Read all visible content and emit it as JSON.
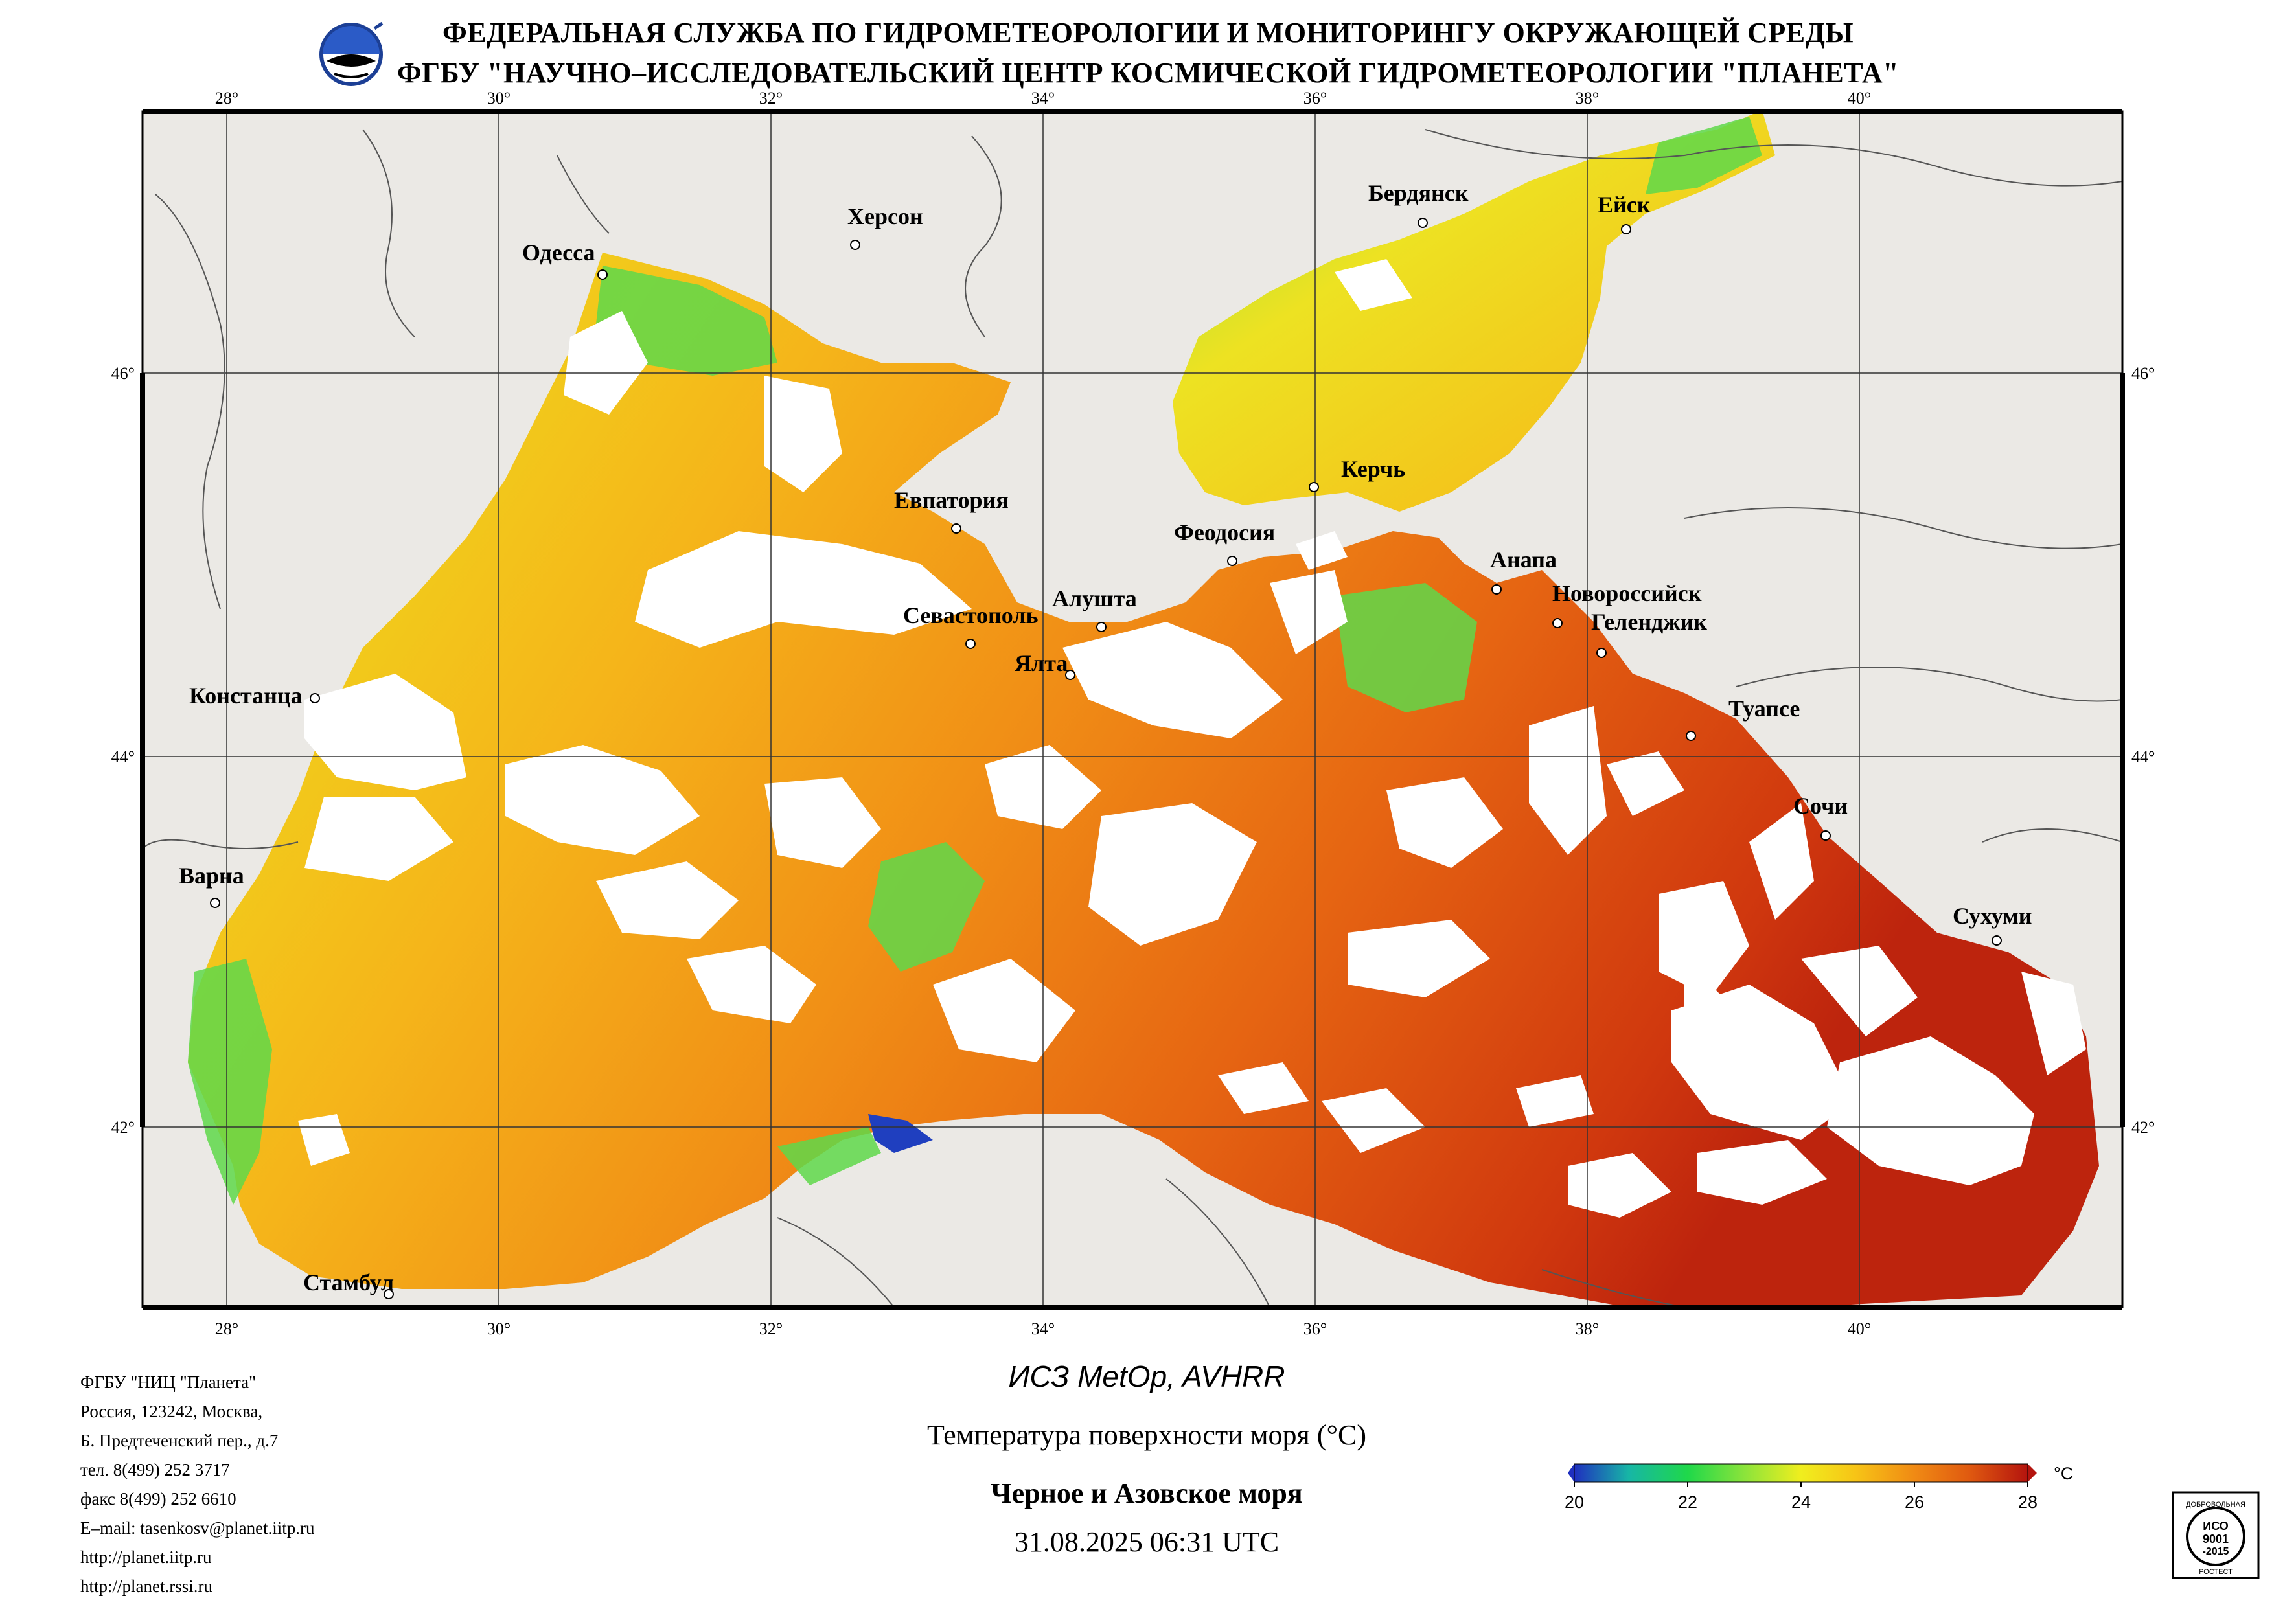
{
  "header": {
    "line1": "ФЕДЕРАЛЬНАЯ СЛУЖБА ПО ГИДРОМЕТЕОРОЛОГИИ И МОНИТОРИНГУ ОКРУЖАЮЩЕЙ СРЕДЫ",
    "line2": "ФГБУ \"НАУЧНО–ИССЛЕДОВАТЕЛЬСКИЙ ЦЕНТР КОСМИЧЕСКОЙ ГИДРОМЕТЕОРОЛОГИИ \"ПЛАНЕТА\"",
    "logo_icon": "planeta-globe-icon"
  },
  "map": {
    "lon_ticks": [
      "28°",
      "30°",
      "32°",
      "34°",
      "36°",
      "38°",
      "40°"
    ],
    "lat_ticks": [
      "46°",
      "44°",
      "42°"
    ],
    "colors": {
      "land": "#ebe9e5",
      "border_line": "#555555",
      "cloud": "#ffffff"
    },
    "cities": [
      {
        "name": "Одесса"
      },
      {
        "name": "Херсон"
      },
      {
        "name": "Бердянск"
      },
      {
        "name": "Ейск"
      },
      {
        "name": "Евпатория"
      },
      {
        "name": "Керчь"
      },
      {
        "name": "Феодосия"
      },
      {
        "name": "Анапа"
      },
      {
        "name": "Новороссийск"
      },
      {
        "name": "Севастополь"
      },
      {
        "name": "Алушта"
      },
      {
        "name": "Геленджик"
      },
      {
        "name": "Ялта"
      },
      {
        "name": "Констанца"
      },
      {
        "name": "Туапсе"
      },
      {
        "name": "Сочи"
      },
      {
        "name": "Варна"
      },
      {
        "name": "Сухуми"
      },
      {
        "name": "Стамбул"
      }
    ]
  },
  "footer": {
    "org_lines": [
      "ФГБУ \"НИЦ \"Планета\"",
      "Россия, 123242, Москва,",
      "Б. Предтеченский пер., д.7",
      "тел. 8(499) 252 3717",
      "факс 8(499) 252 6610",
      "E–mail: tasenkosv@planet.iitp.ru",
      "http://planet.iitp.ru",
      "http://planet.rssi.ru"
    ],
    "satellite": "ИСЗ MetOp, AVHRR",
    "parameter": "Температура поверхности моря (°C)",
    "region": "Черное и Азовское моря",
    "datetime": "31.08.2025 06:31 UTC"
  },
  "colorbar": {
    "unit": "°C",
    "ticks": [
      "20",
      "22",
      "24",
      "26",
      "28"
    ],
    "min": 20,
    "max": 28,
    "gradient_colors": [
      "#1f2fbf",
      "#17b6a6",
      "#1fd84a",
      "#8fe43a",
      "#f0ee1e",
      "#f7c416",
      "#f08a14",
      "#e05a10",
      "#b4140e"
    ]
  },
  "iso_badge": {
    "top": "ДОБРОВОЛЬНАЯ",
    "mid1": "ИСО",
    "mid2": "9001",
    "mid3": "-2015",
    "bottom": "РОСТЕСТ"
  }
}
